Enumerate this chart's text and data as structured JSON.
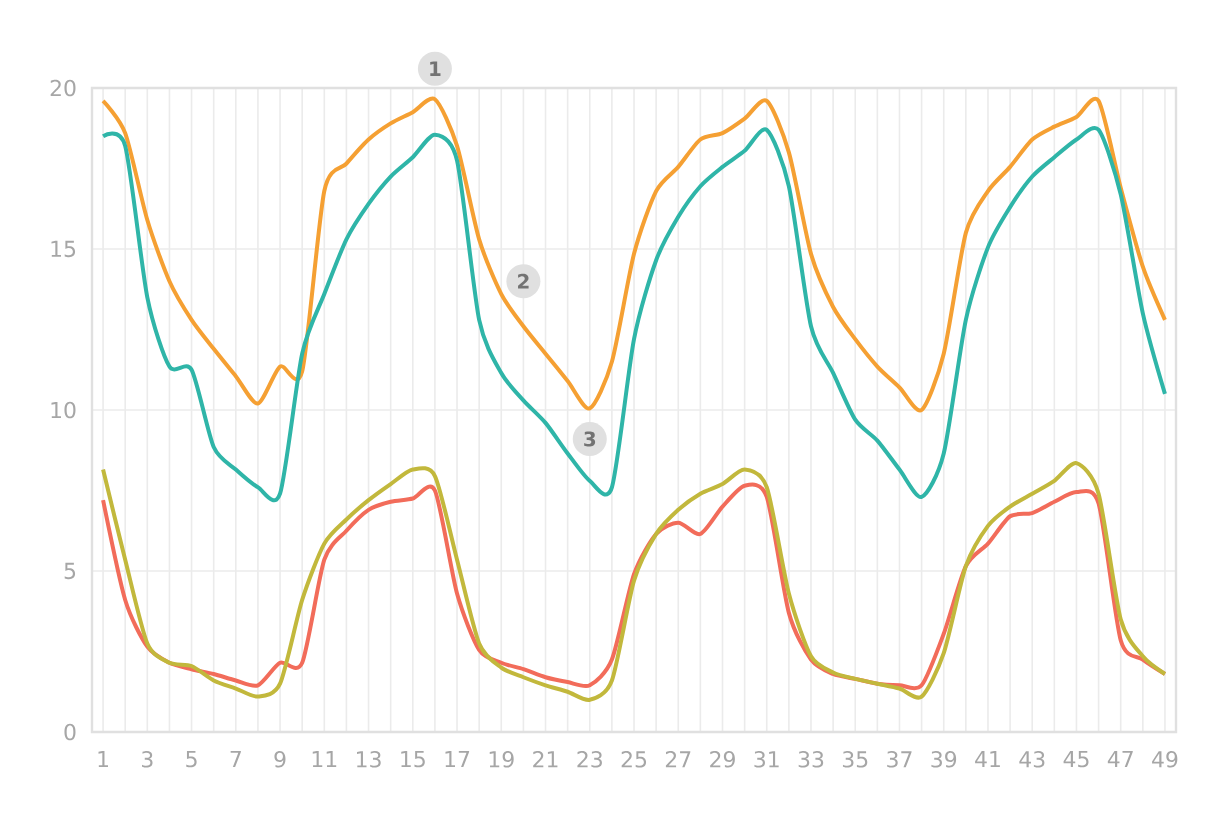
{
  "chart_data": {
    "type": "line",
    "x": [
      1,
      2,
      3,
      4,
      5,
      6,
      7,
      8,
      9,
      10,
      11,
      12,
      13,
      14,
      15,
      16,
      17,
      18,
      19,
      20,
      21,
      22,
      23,
      24,
      25,
      26,
      27,
      28,
      29,
      30,
      31,
      32,
      33,
      34,
      35,
      36,
      37,
      38,
      39,
      40,
      41,
      42,
      43,
      44,
      45,
      46,
      47,
      48,
      49
    ],
    "xlim": [
      0.5,
      49.5
    ],
    "xticks": [
      1,
      {
        "value": 2,
        "label": null
      },
      3,
      {
        "value": 4,
        "label": null
      },
      5,
      {
        "value": 6,
        "label": null
      },
      7,
      {
        "value": 8,
        "label": null
      },
      9,
      {
        "value": 10,
        "label": null
      },
      11,
      {
        "value": 12,
        "label": null
      },
      13,
      {
        "value": 14,
        "label": null
      },
      15,
      {
        "value": 16,
        "label": null
      },
      17,
      {
        "value": 18,
        "label": null
      },
      19,
      {
        "value": 20,
        "label": null
      },
      21,
      {
        "value": 22,
        "label": null
      },
      23,
      {
        "value": 24,
        "label": null
      },
      25,
      {
        "value": 26,
        "label": null
      },
      27,
      {
        "value": 28,
        "label": null
      },
      29,
      {
        "value": 30,
        "label": null
      },
      31,
      {
        "value": 32,
        "label": null
      },
      33,
      {
        "value": 34,
        "label": null
      },
      35,
      {
        "value": 36,
        "label": null
      },
      37,
      {
        "value": 38,
        "label": null
      },
      39,
      {
        "value": 40,
        "label": null
      },
      41,
      {
        "value": 42,
        "label": null
      },
      43,
      {
        "value": 44,
        "label": null
      },
      45,
      {
        "value": 46,
        "label": null
      },
      47,
      {
        "value": 48,
        "label": null
      },
      49
    ],
    "ylim": [
      0,
      20
    ],
    "yticks": [
      0,
      5,
      10,
      15,
      20
    ],
    "grid": true,
    "marker": "none",
    "series": [
      {
        "color": "#f5a033",
        "values": [
          19.6,
          18.6,
          15.9,
          14.0,
          12.8,
          11.9,
          11.05,
          10.2,
          11.35,
          11.2,
          16.8,
          17.65,
          18.4,
          18.9,
          19.25,
          19.65,
          18.2,
          15.3,
          13.6,
          12.6,
          11.75,
          10.9,
          10.05,
          11.5,
          14.85,
          16.8,
          17.55,
          18.4,
          18.6,
          19.05,
          19.6,
          18.0,
          14.85,
          13.2,
          12.2,
          11.35,
          10.7,
          10.0,
          11.75,
          15.5,
          16.8,
          17.55,
          18.4,
          18.8,
          19.1,
          19.6,
          16.9,
          14.45,
          12.8
        ]
      },
      {
        "color": "#2fb5a8",
        "values": [
          18.5,
          18.2,
          13.5,
          11.35,
          11.25,
          8.85,
          8.15,
          7.6,
          7.4,
          11.75,
          13.6,
          15.3,
          16.4,
          17.25,
          17.85,
          18.55,
          17.75,
          12.8,
          11.15,
          10.3,
          9.6,
          8.65,
          7.8,
          7.6,
          12.2,
          14.65,
          16.0,
          16.95,
          17.55,
          18.05,
          18.7,
          16.95,
          12.6,
          11.15,
          9.7,
          9.05,
          8.15,
          7.3,
          8.65,
          12.8,
          15.05,
          16.3,
          17.25,
          17.85,
          18.4,
          18.7,
          16.7,
          13.0,
          10.5
        ]
      },
      {
        "color": "#f26c5a",
        "values": [
          7.2,
          4.1,
          2.65,
          2.15,
          1.95,
          1.8,
          1.6,
          1.45,
          2.15,
          2.15,
          5.35,
          6.25,
          6.9,
          7.15,
          7.25,
          7.5,
          4.3,
          2.55,
          2.15,
          1.95,
          1.7,
          1.55,
          1.45,
          2.25,
          4.9,
          6.15,
          6.5,
          6.15,
          7.0,
          7.65,
          7.3,
          3.7,
          2.25,
          1.8,
          1.65,
          1.5,
          1.45,
          1.45,
          3.05,
          5.15,
          5.85,
          6.7,
          6.8,
          7.15,
          7.45,
          7.1,
          2.85,
          2.25,
          1.8
        ]
      },
      {
        "color": "#c2b83c",
        "values": [
          8.15,
          5.35,
          2.75,
          2.15,
          2.05,
          1.6,
          1.35,
          1.1,
          1.5,
          4.1,
          5.85,
          6.6,
          7.2,
          7.7,
          8.15,
          7.95,
          5.35,
          2.75,
          2.0,
          1.7,
          1.45,
          1.25,
          1.0,
          1.6,
          4.7,
          6.15,
          6.9,
          7.4,
          7.7,
          8.15,
          7.6,
          4.3,
          2.35,
          1.85,
          1.65,
          1.5,
          1.35,
          1.1,
          2.45,
          5.15,
          6.4,
          7.0,
          7.4,
          7.8,
          8.35,
          7.4,
          3.5,
          2.35,
          1.8
        ]
      }
    ],
    "annotations": [
      {
        "text": "1",
        "x": 16,
        "y": 20.6
      },
      {
        "text": "2",
        "x": 20,
        "y": 14.0
      },
      {
        "text": "3",
        "x": 23,
        "y": 9.1
      }
    ]
  }
}
